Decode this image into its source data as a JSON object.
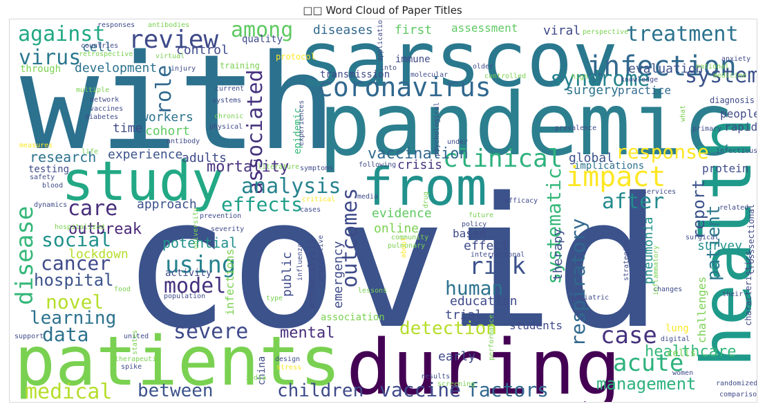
{
  "chart_data": {
    "type": "wordcloud",
    "title": "□□ Word Cloud of Paper Titles",
    "colormap": "viridis",
    "words": [
      {
        "text": "covid",
        "color": "#3b528b"
      },
      {
        "text": "with",
        "color": "#2c718e"
      },
      {
        "text": "pandemic",
        "color": "#2c7f8e"
      },
      {
        "text": "sarscov",
        "color": "#2a788e"
      },
      {
        "text": "patients",
        "color": "#7ad151"
      },
      {
        "text": "during",
        "color": "#440154"
      },
      {
        "text": "health",
        "color": "#1f9a8a"
      },
      {
        "text": "study",
        "color": "#22a884"
      },
      {
        "text": "from",
        "color": "#21918c"
      },
      {
        "text": "coronavirus",
        "color": "#31688e"
      },
      {
        "text": "infection",
        "color": "#31688e"
      },
      {
        "text": "review",
        "color": "#3e4a89"
      },
      {
        "text": "treatment",
        "color": "#2c728e"
      },
      {
        "text": "clinical",
        "color": "#2db27d"
      },
      {
        "text": "system",
        "color": "#3b528b"
      },
      {
        "text": "syndrome",
        "color": "#26828e"
      },
      {
        "text": "against",
        "color": "#22a884"
      },
      {
        "text": "among",
        "color": "#5ec962"
      },
      {
        "text": "impact",
        "color": "#fde725"
      },
      {
        "text": "response",
        "color": "#fde725"
      },
      {
        "text": "disease",
        "color": "#35b779"
      },
      {
        "text": "associated",
        "color": "#46327e"
      },
      {
        "text": "analysis",
        "color": "#26828e"
      },
      {
        "text": "care",
        "color": "#472d7b"
      },
      {
        "text": "virus",
        "color": "#2a788e"
      },
      {
        "text": "role",
        "color": "#31688e"
      },
      {
        "text": "after",
        "color": "#238a8d"
      },
      {
        "text": "effects",
        "color": "#1f9e89"
      },
      {
        "text": "outcomes",
        "color": "#3e4a89"
      },
      {
        "text": "respiratory",
        "color": "#31688e"
      },
      {
        "text": "systematic",
        "color": "#35b779"
      },
      {
        "text": "report",
        "color": "#3b528b"
      },
      {
        "text": "case",
        "color": "#46327e"
      },
      {
        "text": "risk",
        "color": "#3b528b"
      },
      {
        "text": "using",
        "color": "#26828e"
      },
      {
        "text": "cancer",
        "color": "#3e4a89"
      },
      {
        "text": "social",
        "color": "#21918c"
      },
      {
        "text": "model",
        "color": "#46327e"
      },
      {
        "text": "hospital",
        "color": "#3b528b"
      },
      {
        "text": "human",
        "color": "#2c728e"
      },
      {
        "text": "novel",
        "color": "#b5de2b"
      },
      {
        "text": "learning",
        "color": "#2c728e"
      },
      {
        "text": "data",
        "color": "#2c728e"
      },
      {
        "text": "severe",
        "color": "#3e4a89"
      },
      {
        "text": "detection",
        "color": "#b5de2b"
      },
      {
        "text": "acute",
        "color": "#2db27d"
      },
      {
        "text": "healthcare",
        "color": "#35b779"
      },
      {
        "text": "medical",
        "color": "#b5de2b"
      },
      {
        "text": "between",
        "color": "#3b528b"
      },
      {
        "text": "children",
        "color": "#3e4a89"
      },
      {
        "text": "vaccine",
        "color": "#3e4a89"
      },
      {
        "text": "factors",
        "color": "#31688e"
      },
      {
        "text": "management",
        "color": "#2db27d"
      },
      {
        "text": "patient",
        "color": "#2a788e"
      },
      {
        "text": "mental",
        "color": "#472d7b"
      },
      {
        "text": "outbreak",
        "color": "#482878"
      },
      {
        "text": "lockdown",
        "color": "#b5de2b"
      },
      {
        "text": "potential",
        "color": "#21918c"
      },
      {
        "text": "evaluation",
        "color": "#3b528b"
      },
      {
        "text": "mortality",
        "color": "#46327e"
      },
      {
        "text": "vaccination",
        "color": "#31688e"
      },
      {
        "text": "workers",
        "color": "#2c728e"
      },
      {
        "text": "research",
        "color": "#2c728e"
      },
      {
        "text": "experience",
        "color": "#3b528b"
      },
      {
        "text": "cohort",
        "color": "#5ec962"
      },
      {
        "text": "time",
        "color": "#3e4a89"
      },
      {
        "text": "development",
        "color": "#2c728e"
      },
      {
        "text": "control",
        "color": "#3e4a89"
      },
      {
        "text": "surgery",
        "color": "#2c728e"
      },
      {
        "text": "practice",
        "color": "#31688e"
      },
      {
        "text": "diseases",
        "color": "#31688e"
      },
      {
        "text": "first",
        "color": "#5ec962"
      },
      {
        "text": "assessment",
        "color": "#5ec962"
      },
      {
        "text": "viral",
        "color": "#3e4a89"
      },
      {
        "text": "cell",
        "color": "#2c728e"
      },
      {
        "text": "transmission",
        "color": "#3e4a89"
      },
      {
        "text": "immune",
        "color": "#3e4a89"
      },
      {
        "text": "epidemic",
        "color": "#35b779"
      },
      {
        "text": "crisis",
        "color": "#46327e"
      },
      {
        "text": "global",
        "color": "#3b528b"
      },
      {
        "text": "implications",
        "color": "#2c728e"
      },
      {
        "text": "protein",
        "color": "#3e4a89"
      },
      {
        "text": "people",
        "color": "#3e4a89"
      },
      {
        "text": "rapid",
        "color": "#3e4a89"
      },
      {
        "text": "adults",
        "color": "#3e4a89"
      },
      {
        "text": "approach",
        "color": "#3b528b"
      },
      {
        "text": "evidence",
        "color": "#5ec962"
      },
      {
        "text": "online",
        "color": "#7ad151"
      },
      {
        "text": "based",
        "color": "#3e4a89"
      },
      {
        "text": "effect",
        "color": "#3e4a89"
      },
      {
        "text": "therapy",
        "color": "#3e4a89"
      },
      {
        "text": "pneumonia",
        "color": "#21918c"
      },
      {
        "text": "survey",
        "color": "#21918c"
      },
      {
        "text": "challenges",
        "color": "#7ad151"
      },
      {
        "text": "public",
        "color": "#3e4a89"
      },
      {
        "text": "emergency",
        "color": "#3e4a89"
      },
      {
        "text": "metaanalysis",
        "color": "#3e4a89"
      },
      {
        "text": "infections",
        "color": "#7ad151"
      },
      {
        "text": "activity",
        "color": "#3e4a89"
      },
      {
        "text": "education",
        "color": "#3e4a89"
      },
      {
        "text": "trial",
        "color": "#3e4a89"
      },
      {
        "text": "students",
        "color": "#3e4a89"
      },
      {
        "text": "association",
        "color": "#7ad151"
      },
      {
        "text": "early",
        "color": "#3e4a89"
      },
      {
        "text": "china",
        "color": "#3e4a89"
      },
      {
        "text": "cells",
        "color": "#7ad151"
      },
      {
        "text": "lung",
        "color": "#fde725"
      },
      {
        "text": "quality",
        "color": "#3e4a89"
      },
      {
        "text": "testing",
        "color": "#3e4a89"
      },
      {
        "text": "through",
        "color": "#7ad151"
      },
      {
        "text": "responses",
        "color": "#3e4a89"
      },
      {
        "text": "antibodies",
        "color": "#7ad151"
      },
      {
        "text": "countries",
        "color": "#3e4a89"
      },
      {
        "text": "retrospective",
        "color": "#7ad151"
      },
      {
        "text": "virtual",
        "color": "#7ad151"
      },
      {
        "text": "injury",
        "color": "#3e4a89"
      },
      {
        "text": "training",
        "color": "#7ad151"
      },
      {
        "text": "protocol",
        "color": "#fde725"
      },
      {
        "text": "application",
        "color": "#3e4a89"
      },
      {
        "text": "into",
        "color": "#3e4a89"
      },
      {
        "text": "molecular",
        "color": "#3e4a89"
      },
      {
        "text": "controlled",
        "color": "#7ad151"
      },
      {
        "text": "older",
        "color": "#3e4a89"
      },
      {
        "text": "perspective",
        "color": "#7ad151"
      },
      {
        "text": "high",
        "color": "#7ad151"
      },
      {
        "text": "knowledge",
        "color": "#3e4a89"
      },
      {
        "text": "national",
        "color": "#7ad151"
      },
      {
        "text": "anxiety",
        "color": "#3e4a89"
      },
      {
        "text": "medicine",
        "color": "#7ad151"
      },
      {
        "text": "diagnosis",
        "color": "#3e4a89"
      },
      {
        "text": "multiple",
        "color": "#7ad151"
      },
      {
        "text": "network",
        "color": "#3e4a89"
      },
      {
        "text": "vaccines",
        "color": "#3e4a89"
      },
      {
        "text": "diabetes",
        "color": "#3e4a89"
      },
      {
        "text": "current",
        "color": "#3e4a89"
      },
      {
        "text": "systems",
        "color": "#3e4a89"
      },
      {
        "text": "chronic",
        "color": "#7ad151"
      },
      {
        "text": "physical",
        "color": "#3e4a89"
      },
      {
        "text": "antibody",
        "color": "#3e4a89"
      },
      {
        "text": "psychological",
        "color": "#3e4a89"
      },
      {
        "text": "experiences",
        "color": "#3e4a89"
      },
      {
        "text": "under",
        "color": "#3e4a89"
      },
      {
        "text": "prevalence",
        "color": "#3e4a89"
      },
      {
        "text": "primary",
        "color": "#3e4a89"
      },
      {
        "text": "what",
        "color": "#7ad151"
      },
      {
        "text": "infectious",
        "color": "#3e4a89"
      },
      {
        "text": "measures",
        "color": "#fde725"
      },
      {
        "text": "life",
        "color": "#7ad151"
      },
      {
        "text": "safety",
        "color": "#3e4a89"
      },
      {
        "text": "literature",
        "color": "#7ad151"
      },
      {
        "text": "symptoms",
        "color": "#3e4a89"
      },
      {
        "text": "following",
        "color": "#3e4a89"
      },
      {
        "text": "blood",
        "color": "#3e4a89"
      },
      {
        "text": "dynamics",
        "color": "#3e4a89"
      },
      {
        "text": "hospitalized",
        "color": "#7ad151"
      },
      {
        "text": "prevention",
        "color": "#3e4a89"
      },
      {
        "text": "severity",
        "color": "#3e4a89"
      },
      {
        "text": "university",
        "color": "#7ad151"
      },
      {
        "text": "critical",
        "color": "#fde725"
      },
      {
        "text": "cases",
        "color": "#3e4a89"
      },
      {
        "text": "media",
        "color": "#3e4a89"
      },
      {
        "text": "drug",
        "color": "#7ad151"
      },
      {
        "text": "efficacy",
        "color": "#3e4a89"
      },
      {
        "text": "future",
        "color": "#7ad151"
      },
      {
        "text": "policy",
        "color": "#3e4a89"
      },
      {
        "text": "services",
        "color": "#3e4a89"
      },
      {
        "text": "related",
        "color": "#3e4a89"
      },
      {
        "text": "surgical",
        "color": "#3e4a89"
      },
      {
        "text": "crosssectional",
        "color": "#3e4a89"
      },
      {
        "text": "community",
        "color": "#7ad151"
      },
      {
        "text": "pulmonary",
        "color": "#7ad151"
      },
      {
        "text": "international",
        "color": "#3e4a89"
      },
      {
        "text": "about",
        "color": "#fde725"
      },
      {
        "text": "influenza",
        "color": "#3e4a89"
      },
      {
        "text": "prospective",
        "color": "#3e4a89"
      },
      {
        "text": "lessons",
        "color": "#7ad151"
      },
      {
        "text": "type",
        "color": "#7ad151"
      },
      {
        "text": "food",
        "color": "#7ad151"
      },
      {
        "text": "population",
        "color": "#3e4a89"
      },
      {
        "text": "changes",
        "color": "#3e4a89"
      },
      {
        "text": "inflammatory",
        "color": "#7ad151"
      },
      {
        "text": "strategies",
        "color": "#3e4a89"
      },
      {
        "text": "pediatric",
        "color": "#3e4a89"
      },
      {
        "text": "their",
        "color": "#3e4a89"
      },
      {
        "text": "characteristics",
        "color": "#3e4a89"
      },
      {
        "text": "support",
        "color": "#3e4a89"
      },
      {
        "text": "united",
        "color": "#3e4a89"
      },
      {
        "text": "states",
        "color": "#7ad151"
      },
      {
        "text": "therapeutic",
        "color": "#7ad151"
      },
      {
        "text": "spike",
        "color": "#3e4a89"
      },
      {
        "text": "india",
        "color": "#7ad151"
      },
      {
        "text": "design",
        "color": "#3e4a89"
      },
      {
        "text": "stress",
        "color": "#fde725"
      },
      {
        "text": "results",
        "color": "#3e4a89"
      },
      {
        "text": "screening",
        "color": "#7ad151"
      },
      {
        "text": "performance",
        "color": "#7ad151"
      },
      {
        "text": "digital",
        "color": "#3e4a89"
      },
      {
        "text": "women",
        "color": "#3e4a89"
      },
      {
        "text": "randomized",
        "color": "#3e4a89"
      },
      {
        "text": "comparison",
        "color": "#3e4a89"
      }
    ]
  }
}
